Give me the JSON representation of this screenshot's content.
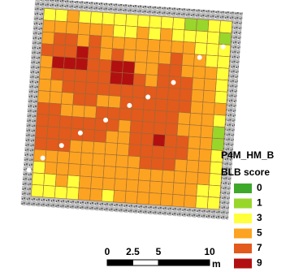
{
  "map": {
    "title": "P4M_HM_B",
    "legend_title": "BLB score",
    "legend": [
      {
        "score": 0,
        "color": "#3ea82a"
      },
      {
        "score": 1,
        "color": "#98d62c"
      },
      {
        "score": 3,
        "color": "#ffff3c"
      },
      {
        "score": 5,
        "color": "#fca321"
      },
      {
        "score": 7,
        "color": "#e25a1c"
      },
      {
        "score": 9,
        "color": "#b21010"
      }
    ],
    "scale_bar": {
      "ticks": [
        0,
        2.5,
        5,
        10
      ],
      "unit": "m"
    },
    "grid": [
      [
        3,
        3,
        5,
        3,
        3,
        3,
        3,
        3,
        3,
        3,
        3,
        3,
        1,
        1,
        3,
        3
      ],
      [
        5,
        5,
        5,
        5,
        5,
        5,
        3,
        3,
        5,
        3,
        5,
        3,
        3,
        3,
        3,
        1
      ],
      [
        5,
        7,
        7,
        5,
        7,
        5,
        5,
        5,
        5,
        5,
        5,
        5,
        5,
        3,
        3,
        3
      ],
      [
        7,
        7,
        7,
        9,
        7,
        5,
        7,
        5,
        5,
        5,
        5,
        7,
        5,
        5,
        3,
        3
      ],
      [
        5,
        9,
        9,
        9,
        7,
        7,
        9,
        9,
        5,
        5,
        7,
        7,
        5,
        5,
        5,
        3
      ],
      [
        5,
        7,
        7,
        7,
        7,
        7,
        9,
        9,
        7,
        5,
        7,
        7,
        7,
        5,
        5,
        3
      ],
      [
        5,
        5,
        7,
        7,
        7,
        7,
        7,
        7,
        7,
        7,
        7,
        7,
        7,
        5,
        5,
        3
      ],
      [
        5,
        5,
        5,
        7,
        7,
        5,
        5,
        7,
        7,
        7,
        7,
        7,
        7,
        5,
        5,
        5
      ],
      [
        7,
        7,
        5,
        5,
        5,
        7,
        7,
        7,
        7,
        7,
        7,
        7,
        5,
        5,
        5,
        3
      ],
      [
        7,
        7,
        7,
        7,
        7,
        7,
        7,
        5,
        7,
        7,
        7,
        7,
        5,
        5,
        5,
        1
      ],
      [
        7,
        7,
        7,
        7,
        7,
        7,
        5,
        5,
        7,
        7,
        9,
        7,
        7,
        5,
        5,
        1
      ],
      [
        7,
        7,
        7,
        5,
        5,
        5,
        5,
        5,
        7,
        7,
        7,
        7,
        7,
        5,
        5,
        3
      ],
      [
        5,
        5,
        5,
        5,
        5,
        5,
        5,
        5,
        5,
        7,
        7,
        7,
        5,
        5,
        5,
        3
      ],
      [
        3,
        5,
        5,
        5,
        5,
        5,
        5,
        5,
        5,
        5,
        5,
        5,
        5,
        5,
        5,
        3
      ],
      [
        3,
        3,
        5,
        3,
        5,
        5,
        5,
        5,
        5,
        5,
        5,
        5,
        5,
        5,
        3,
        3
      ],
      [
        3,
        3,
        3,
        3,
        5,
        5,
        3,
        5,
        5,
        5,
        5,
        5,
        5,
        5,
        3,
        3
      ]
    ]
  }
}
